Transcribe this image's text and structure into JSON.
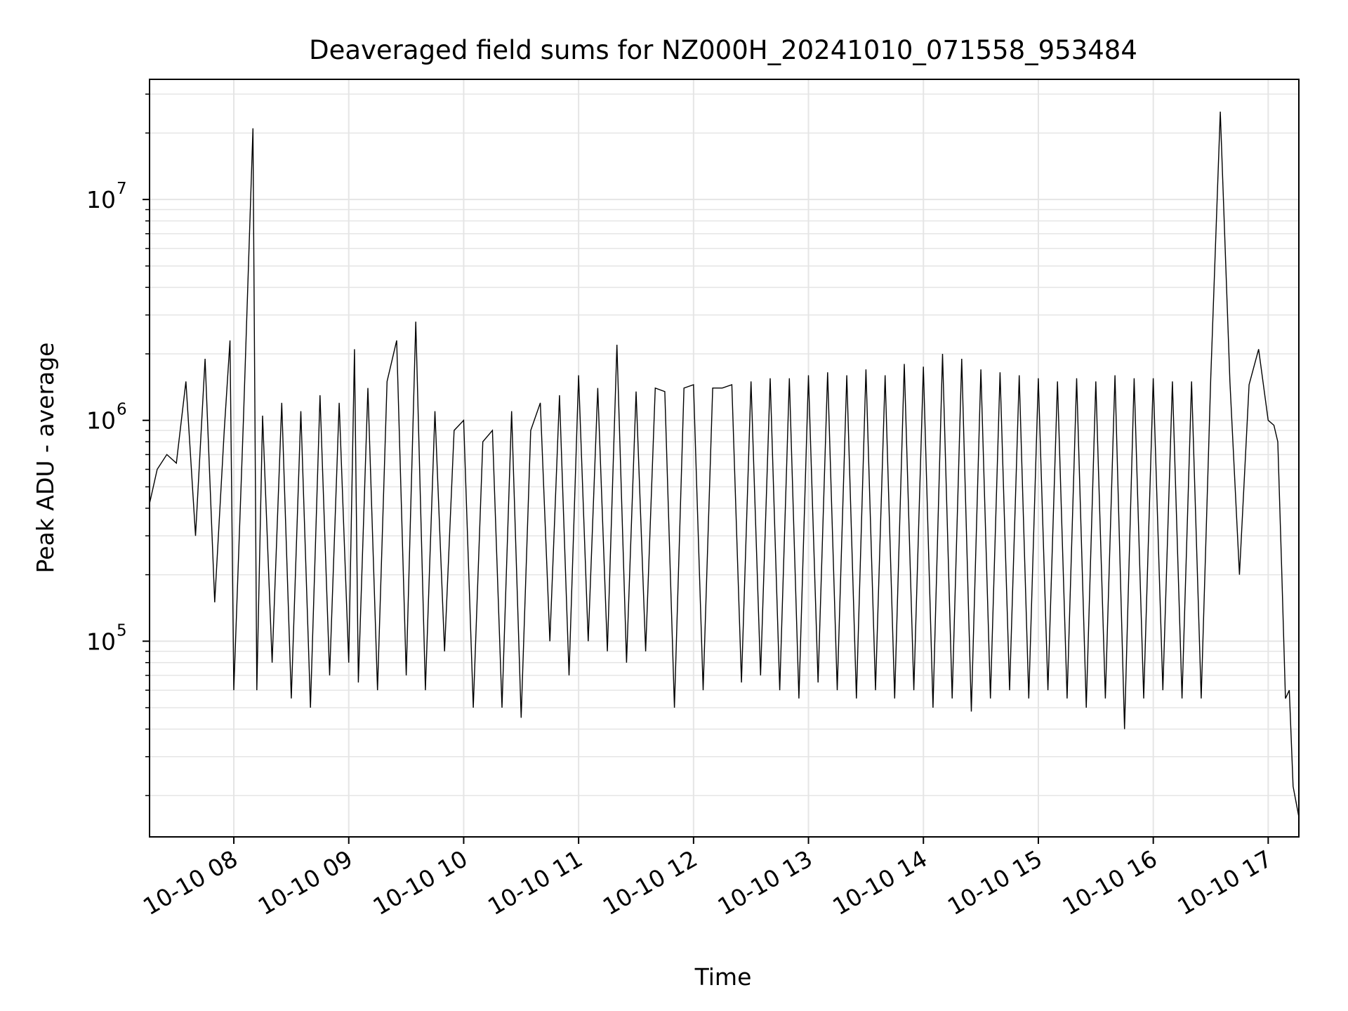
{
  "chart_data": {
    "type": "line",
    "title": "Deaveraged field sums for NZ000H_20241010_071558_953484",
    "xlabel": "Time",
    "ylabel": "Peak ADU - average",
    "x_scale": "time",
    "y_scale": "log",
    "xlim": [
      "2024-10-10 07:16",
      "2024-10-10 17:16"
    ],
    "ylim": [
      13000,
      35000000
    ],
    "grid": true,
    "legend": "none",
    "line_color": "#000000",
    "grid_color": "#e5e5e5",
    "x_ticks": [
      {
        "value": "2024-10-10 08:00",
        "label": "10-10 08"
      },
      {
        "value": "2024-10-10 09:00",
        "label": "10-10 09"
      },
      {
        "value": "2024-10-10 10:00",
        "label": "10-10 10"
      },
      {
        "value": "2024-10-10 11:00",
        "label": "10-10 11"
      },
      {
        "value": "2024-10-10 12:00",
        "label": "10-10 12"
      },
      {
        "value": "2024-10-10 13:00",
        "label": "10-10 13"
      },
      {
        "value": "2024-10-10 14:00",
        "label": "10-10 14"
      },
      {
        "value": "2024-10-10 15:00",
        "label": "10-10 15"
      },
      {
        "value": "2024-10-10 16:00",
        "label": "10-10 16"
      },
      {
        "value": "2024-10-10 17:00",
        "label": "10-10 17"
      }
    ],
    "y_ticks": [
      {
        "value": 100000,
        "base": "10",
        "exp": "5"
      },
      {
        "value": 1000000,
        "base": "10",
        "exp": "6"
      },
      {
        "value": 10000000,
        "base": "10",
        "exp": "7"
      }
    ],
    "series": [
      {
        "x": [
          "2024-10-10 07:16",
          "2024-10-10 07:20",
          "2024-10-10 07:25",
          "2024-10-10 07:30",
          "2024-10-10 07:35",
          "2024-10-10 07:40",
          "2024-10-10 07:45",
          "2024-10-10 07:50",
          "2024-10-10 07:55",
          "2024-10-10 07:58",
          "2024-10-10 08:00",
          "2024-10-10 08:05",
          "2024-10-10 08:10",
          "2024-10-10 08:12",
          "2024-10-10 08:15",
          "2024-10-10 08:20",
          "2024-10-10 08:25",
          "2024-10-10 08:30",
          "2024-10-10 08:35",
          "2024-10-10 08:40",
          "2024-10-10 08:45",
          "2024-10-10 08:50",
          "2024-10-10 08:55",
          "2024-10-10 09:00",
          "2024-10-10 09:03",
          "2024-10-10 09:05",
          "2024-10-10 09:10",
          "2024-10-10 09:15",
          "2024-10-10 09:20",
          "2024-10-10 09:25",
          "2024-10-10 09:30",
          "2024-10-10 09:35",
          "2024-10-10 09:40",
          "2024-10-10 09:45",
          "2024-10-10 09:50",
          "2024-10-10 09:55",
          "2024-10-10 10:00",
          "2024-10-10 10:05",
          "2024-10-10 10:10",
          "2024-10-10 10:15",
          "2024-10-10 10:20",
          "2024-10-10 10:25",
          "2024-10-10 10:30",
          "2024-10-10 10:35",
          "2024-10-10 10:40",
          "2024-10-10 10:45",
          "2024-10-10 10:50",
          "2024-10-10 10:55",
          "2024-10-10 11:00",
          "2024-10-10 11:05",
          "2024-10-10 11:10",
          "2024-10-10 11:15",
          "2024-10-10 11:20",
          "2024-10-10 11:25",
          "2024-10-10 11:30",
          "2024-10-10 11:35",
          "2024-10-10 11:40",
          "2024-10-10 11:45",
          "2024-10-10 11:50",
          "2024-10-10 11:55",
          "2024-10-10 12:00",
          "2024-10-10 12:05",
          "2024-10-10 12:10",
          "2024-10-10 12:15",
          "2024-10-10 12:20",
          "2024-10-10 12:25",
          "2024-10-10 12:30",
          "2024-10-10 12:35",
          "2024-10-10 12:40",
          "2024-10-10 12:45",
          "2024-10-10 12:50",
          "2024-10-10 12:55",
          "2024-10-10 13:00",
          "2024-10-10 13:05",
          "2024-10-10 13:10",
          "2024-10-10 13:15",
          "2024-10-10 13:20",
          "2024-10-10 13:25",
          "2024-10-10 13:30",
          "2024-10-10 13:35",
          "2024-10-10 13:40",
          "2024-10-10 13:45",
          "2024-10-10 13:50",
          "2024-10-10 13:55",
          "2024-10-10 14:00",
          "2024-10-10 14:05",
          "2024-10-10 14:10",
          "2024-10-10 14:15",
          "2024-10-10 14:20",
          "2024-10-10 14:25",
          "2024-10-10 14:30",
          "2024-10-10 14:35",
          "2024-10-10 14:40",
          "2024-10-10 14:45",
          "2024-10-10 14:50",
          "2024-10-10 14:55",
          "2024-10-10 15:00",
          "2024-10-10 15:05",
          "2024-10-10 15:10",
          "2024-10-10 15:15",
          "2024-10-10 15:20",
          "2024-10-10 15:25",
          "2024-10-10 15:30",
          "2024-10-10 15:35",
          "2024-10-10 15:40",
          "2024-10-10 15:45",
          "2024-10-10 15:50",
          "2024-10-10 15:55",
          "2024-10-10 16:00",
          "2024-10-10 16:05",
          "2024-10-10 16:10",
          "2024-10-10 16:15",
          "2024-10-10 16:20",
          "2024-10-10 16:25",
          "2024-10-10 16:30",
          "2024-10-10 16:35",
          "2024-10-10 16:40",
          "2024-10-10 16:45",
          "2024-10-10 16:50",
          "2024-10-10 16:55",
          "2024-10-10 17:00",
          "2024-10-10 17:03",
          "2024-10-10 17:05",
          "2024-10-10 17:07",
          "2024-10-10 17:09",
          "2024-10-10 17:11",
          "2024-10-10 17:13",
          "2024-10-10 17:16"
        ],
        "y": [
          420000,
          600000,
          700000,
          640000,
          1500000,
          300000,
          1900000,
          150000,
          900000,
          2300000,
          60000,
          1000000,
          21000000,
          60000,
          1050000,
          80000,
          1200000,
          55000,
          1100000,
          50000,
          1300000,
          70000,
          1200000,
          80000,
          2100000,
          65000,
          1400000,
          60000,
          1500000,
          2300000,
          70000,
          2800000,
          60000,
          1100000,
          90000,
          900000,
          1000000,
          50000,
          800000,
          900000,
          50000,
          1100000,
          45000,
          900000,
          1200000,
          100000,
          1300000,
          70000,
          1600000,
          100000,
          1400000,
          90000,
          2200000,
          80000,
          1350000,
          90000,
          1400000,
          1350000,
          50000,
          1400000,
          1450000,
          60000,
          1400000,
          1400000,
          1450000,
          65000,
          1500000,
          70000,
          1550000,
          60000,
          1550000,
          55000,
          1600000,
          65000,
          1650000,
          60000,
          1600000,
          55000,
          1700000,
          60000,
          1600000,
          55000,
          1800000,
          60000,
          1750000,
          50000,
          2000000,
          55000,
          1900000,
          48000,
          1700000,
          55000,
          1650000,
          60000,
          1600000,
          55000,
          1550000,
          60000,
          1500000,
          55000,
          1550000,
          50000,
          1500000,
          55000,
          1600000,
          40000,
          1550000,
          55000,
          1550000,
          60000,
          1500000,
          55000,
          1500000,
          55000,
          1550000,
          25000000,
          1500000,
          200000,
          1450000,
          2100000,
          1000000,
          950000,
          800000,
          220000,
          55000,
          60000,
          22000,
          16000
        ]
      }
    ]
  }
}
